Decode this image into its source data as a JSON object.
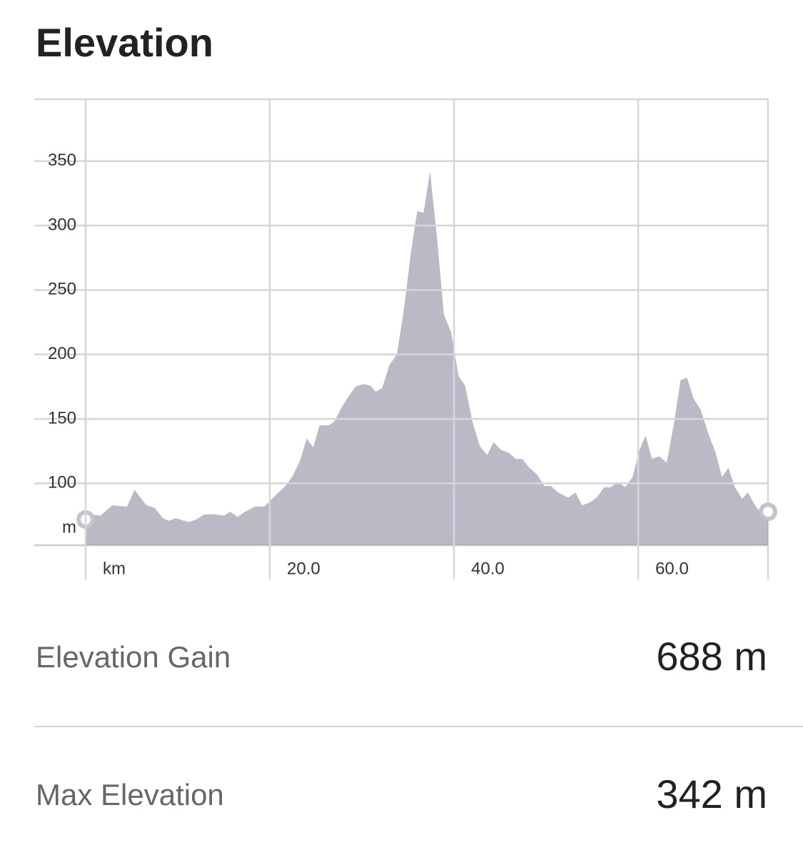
{
  "title": "Elevation",
  "chart_data": {
    "type": "area",
    "ylabel": "m",
    "color": "#9c9cae",
    "x": [
      0,
      0.6,
      1.6,
      2.9,
      4.5,
      5.3,
      6.6,
      7.5,
      8.4,
      9.0,
      9.8,
      11.2,
      12.0,
      12.9,
      13.9,
      15.0,
      15.7,
      16.5,
      17.3,
      18.4,
      19.4,
      20.8,
      21.7,
      22.5,
      23.3,
      24.0,
      24.7,
      25.4,
      26.4,
      27.0,
      27.8,
      28.5,
      29.3,
      30.1,
      30.9,
      31.5,
      32.2,
      33.0,
      33.8,
      34.6,
      35.3,
      36.0,
      36.7,
      37.4,
      38.2,
      38.9,
      39.7,
      40.5,
      41.2,
      42.0,
      42.8,
      43.6,
      44.3,
      45.1,
      45.9,
      46.7,
      47.4,
      48.2,
      49.0,
      49.8,
      50.5,
      51.3,
      52.4,
      53.2,
      53.9,
      54.7,
      55.5,
      56.3,
      57.0,
      57.8,
      58.6,
      59.4,
      60.1,
      60.8,
      61.5,
      62.3,
      63.1,
      63.9,
      64.6,
      65.3,
      66.0,
      66.8,
      67.6,
      68.4,
      69.1,
      69.8,
      70.5,
      71.3,
      71.9,
      72.7,
      73.5,
      74.1
    ],
    "values": [
      72,
      76,
      75,
      83,
      82,
      95,
      83,
      81,
      73,
      71,
      73,
      70,
      72,
      76,
      76,
      75,
      78,
      74,
      78,
      82,
      82,
      92,
      98,
      106,
      118,
      135,
      128,
      145,
      145,
      148,
      159,
      167,
      175,
      177,
      176,
      171,
      174,
      192,
      200,
      237,
      278,
      311,
      310,
      342,
      287,
      231,
      217,
      183,
      176,
      148,
      129,
      122,
      132,
      126,
      124,
      119,
      119,
      112,
      107,
      98,
      98,
      93,
      89,
      93,
      83,
      85,
      89,
      97,
      97,
      101,
      97,
      105,
      125,
      137,
      119,
      121,
      116,
      147,
      180,
      182,
      166,
      157,
      139,
      124,
      105,
      112,
      97,
      88,
      93,
      83,
      75,
      78
    ],
    "xlim": [
      0,
      74.1
    ],
    "ylim": [
      52,
      398
    ],
    "xticks": [
      {
        "value": 0,
        "label": "km"
      },
      {
        "value": 20,
        "label": "20.0"
      },
      {
        "value": 40,
        "label": "40.0"
      },
      {
        "value": 60,
        "label": "60.0"
      }
    ],
    "yticks": [
      100,
      150,
      200,
      250,
      300,
      350
    ],
    "grid": true
  },
  "stats": [
    {
      "label": "Elevation Gain",
      "value": "688 m"
    },
    {
      "label": "Max Elevation",
      "value": "342 m"
    }
  ]
}
